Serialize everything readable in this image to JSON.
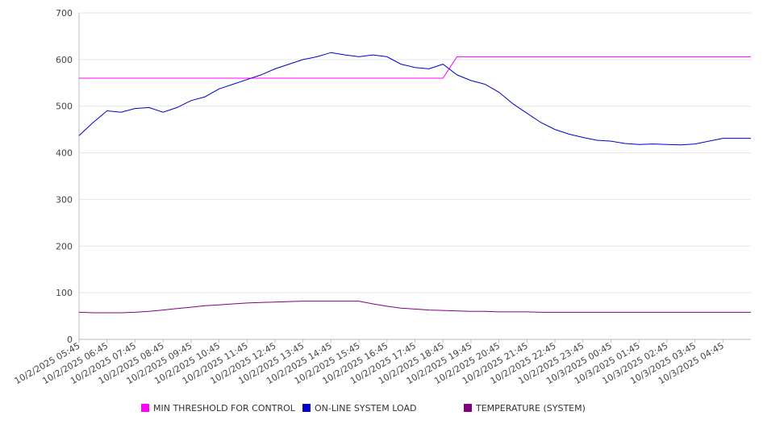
{
  "chart_data": {
    "type": "line",
    "title": "",
    "xlabel": "",
    "ylabel": "",
    "ylim": [
      0,
      700
    ],
    "y_ticks": [
      0,
      100,
      200,
      300,
      400,
      500,
      600,
      700
    ],
    "grid": true,
    "legend_position": "bottom",
    "x_tick_labels": [
      "10/2/2025 05:45",
      "10/2/2025 06:45",
      "10/2/2025 07:45",
      "10/2/2025 08:45",
      "10/2/2025 09:45",
      "10/2/2025 10:45",
      "10/2/2025 11:45",
      "10/2/2025 12:45",
      "10/2/2025 13:45",
      "10/2/2025 14:45",
      "10/2/2025 15:45",
      "10/2/2025 16:45",
      "10/2/2025 17:45",
      "10/2/2025 18:45",
      "10/2/2025 19:45",
      "10/2/2025 20:45",
      "10/2/2025 21:45",
      "10/2/2025 22:45",
      "10/2/2025 23:45",
      "10/3/2025 00:45",
      "10/3/2025 01:45",
      "10/3/2025 02:45",
      "10/3/2025 03:45",
      "10/3/2025 04:45"
    ],
    "x": [
      "05:45",
      "06:15",
      "06:45",
      "07:15",
      "07:45",
      "08:15",
      "08:45",
      "09:15",
      "09:45",
      "10:15",
      "10:45",
      "11:15",
      "11:45",
      "12:15",
      "12:45",
      "13:15",
      "13:45",
      "14:15",
      "14:45",
      "15:15",
      "15:45",
      "16:15",
      "16:45",
      "17:15",
      "17:45",
      "18:15",
      "18:45",
      "19:15",
      "19:45",
      "20:15",
      "20:45",
      "21:15",
      "21:45",
      "22:15",
      "22:45",
      "23:15",
      "23:45",
      "00:15",
      "00:45",
      "01:15",
      "01:45",
      "02:15",
      "02:45",
      "03:15",
      "03:45",
      "04:15",
      "04:45",
      "05:15",
      "05:45"
    ],
    "series": [
      {
        "name": "MIN THRESHOLD FOR CONTROL",
        "color": "#ff00ff",
        "values": [
          560,
          560,
          560,
          560,
          560,
          560,
          560,
          560,
          560,
          560,
          560,
          560,
          560,
          560,
          560,
          560,
          560,
          560,
          560,
          560,
          560,
          560,
          560,
          560,
          560,
          560,
          560,
          606,
          606,
          606,
          606,
          606,
          606,
          606,
          606,
          606,
          606,
          606,
          606,
          606,
          606,
          606,
          606,
          606,
          606,
          606,
          606,
          606,
          606
        ]
      },
      {
        "name": "ON-LINE SYSTEM LOAD",
        "color": "#0000cc",
        "values": [
          437,
          465,
          490,
          487,
          495,
          497,
          487,
          497,
          512,
          520,
          537,
          547,
          557,
          567,
          580,
          590,
          600,
          606,
          615,
          610,
          606,
          610,
          606,
          590,
          583,
          580,
          590,
          567,
          555,
          547,
          530,
          505,
          485,
          465,
          450,
          440,
          433,
          427,
          425,
          420,
          418,
          419,
          418,
          417,
          419,
          425,
          431,
          431,
          431
        ]
      },
      {
        "name": "TEMPERATURE (SYSTEM)",
        "color": "#800080",
        "values": [
          58,
          57,
          57,
          57,
          58,
          60,
          63,
          66,
          69,
          72,
          74,
          76,
          78,
          79,
          80,
          81,
          82,
          82,
          82,
          82,
          82,
          76,
          71,
          67,
          65,
          63,
          62,
          61,
          60,
          60,
          59,
          59,
          59,
          58,
          58,
          58,
          58,
          58,
          58,
          58,
          58,
          58,
          58,
          58,
          58,
          58,
          58,
          58,
          58
        ]
      }
    ]
  }
}
